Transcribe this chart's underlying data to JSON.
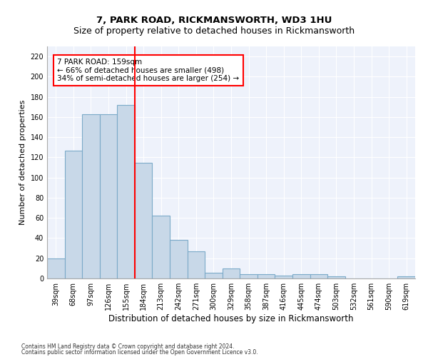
{
  "title": "7, PARK ROAD, RICKMANSWORTH, WD3 1HU",
  "subtitle": "Size of property relative to detached houses in Rickmansworth",
  "xlabel": "Distribution of detached houses by size in Rickmansworth",
  "ylabel": "Number of detached properties",
  "footnote1": "Contains HM Land Registry data © Crown copyright and database right 2024.",
  "footnote2": "Contains public sector information licensed under the Open Government Licence v3.0.",
  "bar_labels": [
    "39sqm",
    "68sqm",
    "97sqm",
    "126sqm",
    "155sqm",
    "184sqm",
    "213sqm",
    "242sqm",
    "271sqm",
    "300sqm",
    "329sqm",
    "358sqm",
    "387sqm",
    "416sqm",
    "445sqm",
    "474sqm",
    "503sqm",
    "532sqm",
    "561sqm",
    "590sqm",
    "619sqm"
  ],
  "bar_values": [
    20,
    127,
    163,
    163,
    172,
    115,
    62,
    38,
    27,
    6,
    10,
    4,
    4,
    3,
    4,
    4,
    2,
    0,
    0,
    0,
    2
  ],
  "bar_color": "#c8d8e8",
  "bar_edge_color": "#7baac8",
  "bar_edge_width": 0.8,
  "property_line_x": 4.5,
  "annotation_text": "7 PARK ROAD: 159sqm\n← 66% of detached houses are smaller (498)\n34% of semi-detached houses are larger (254) →",
  "annotation_box_color": "white",
  "annotation_box_edge_color": "red",
  "vline_color": "red",
  "ylim": [
    0,
    230
  ],
  "yticks": [
    0,
    20,
    40,
    60,
    80,
    100,
    120,
    140,
    160,
    180,
    200,
    220
  ],
  "background_color": "#eef2fb",
  "title_fontsize": 9.5,
  "xlabel_fontsize": 8.5,
  "ylabel_fontsize": 8,
  "tick_fontsize": 7,
  "annotation_fontsize": 7.5
}
